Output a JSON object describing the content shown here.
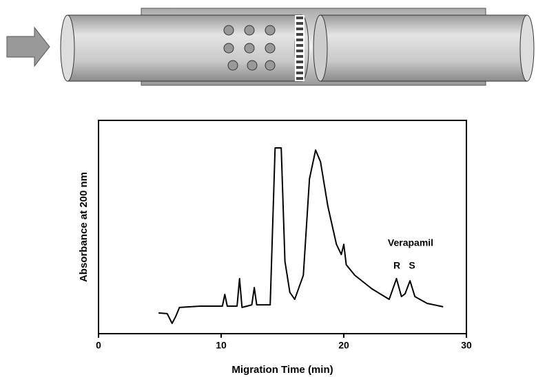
{
  "chart_data": {
    "type": "line",
    "xlabel": "Migration Time (min)",
    "ylabel": "Absorbance at 200 nm",
    "annotations": [
      "Verapamil",
      "R",
      "S"
    ],
    "xlim": [
      0,
      30
    ],
    "xticks": [
      0,
      10,
      20,
      30
    ],
    "ylim": [
      0,
      100
    ],
    "color": "#000000",
    "x": [
      4.9,
      5.6,
      6.0,
      6.3,
      6.6,
      8.3,
      10.1,
      10.3,
      10.5,
      11.3,
      11.5,
      11.7,
      12.5,
      12.7,
      12.9,
      14.0,
      14.4,
      14.9,
      15.2,
      15.6,
      16.0,
      16.7,
      17.2,
      17.7,
      18.1,
      18.7,
      19.4,
      19.8,
      20.0,
      20.2,
      20.9,
      22.3,
      23.7,
      24.3,
      24.7,
      25.0,
      25.4,
      25.8,
      26.8,
      28.1
    ],
    "y": [
      9.7,
      9.4,
      4.8,
      8.1,
      12.3,
      12.9,
      12.9,
      18.4,
      12.9,
      12.9,
      25.8,
      12.3,
      13.5,
      21.6,
      13.5,
      13.5,
      87.1,
      87.1,
      33.9,
      19.4,
      16.1,
      27.4,
      72.6,
      86.1,
      80.6,
      59.7,
      41.9,
      37.1,
      41.9,
      32.3,
      27.4,
      21.0,
      16.1,
      25.8,
      17.4,
      18.7,
      24.8,
      17.4,
      14.2,
      12.6
    ]
  }
}
